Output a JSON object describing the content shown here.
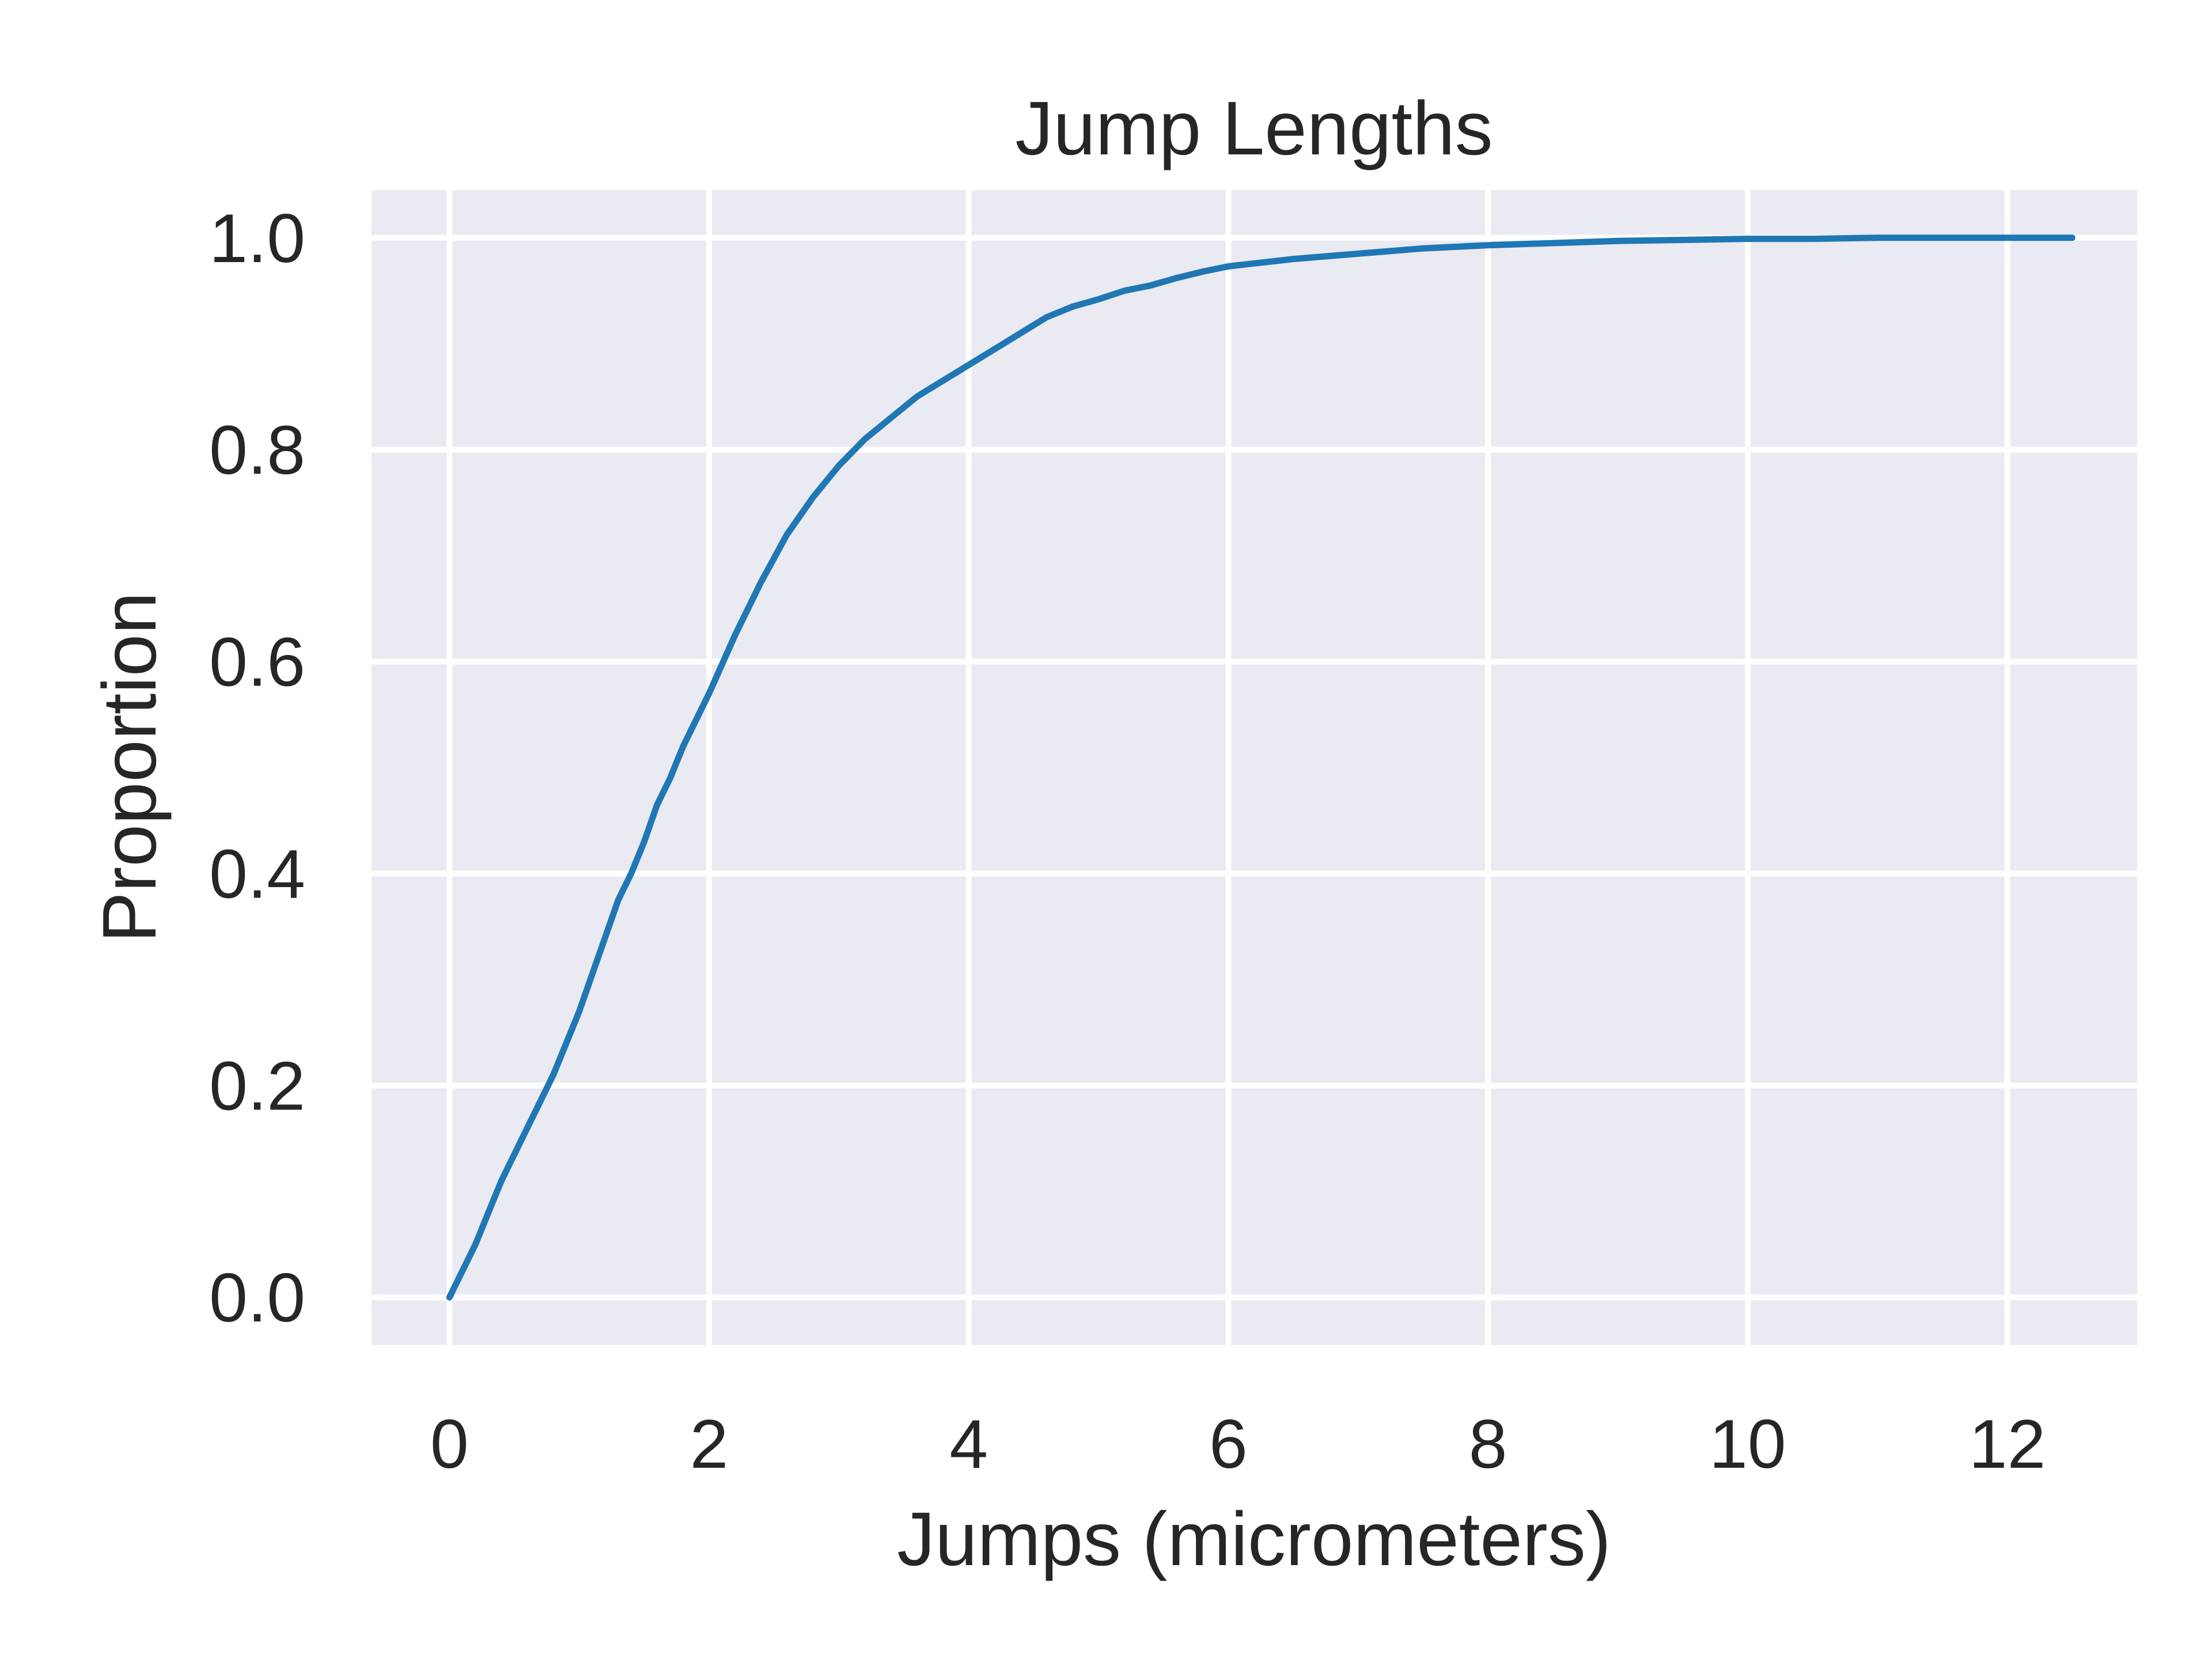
{
  "chart_data": {
    "type": "line",
    "title": "Jump Lengths",
    "xlabel": "Jumps (micrometers)",
    "ylabel": "Proportion",
    "xlim": [
      -0.6,
      13.0
    ],
    "ylim": [
      -0.045,
      1.045
    ],
    "xticks": [
      0,
      2,
      4,
      6,
      8,
      10,
      12
    ],
    "xtick_labels": [
      "0",
      "2",
      "4",
      "6",
      "8",
      "10",
      "12"
    ],
    "yticks": [
      0.0,
      0.2,
      0.4,
      0.6,
      0.8,
      1.0
    ],
    "ytick_labels": [
      "0.0",
      "0.2",
      "0.4",
      "0.6",
      "0.8",
      "1.0"
    ],
    "grid": true,
    "background_color": "#eaeaf2",
    "grid_color": "#ffffff",
    "series": [
      {
        "color": "#1f77b4",
        "x": [
          0.0,
          0.1,
          0.2,
          0.3,
          0.4,
          0.5,
          0.6,
          0.7,
          0.8,
          0.9,
          1.0,
          1.1,
          1.2,
          1.3,
          1.4,
          1.5,
          1.6,
          1.7,
          1.8,
          1.9,
          2.0,
          2.2,
          2.4,
          2.6,
          2.8,
          3.0,
          3.2,
          3.4,
          3.6,
          3.8,
          4.0,
          4.2,
          4.4,
          4.6,
          4.8,
          5.0,
          5.2,
          5.4,
          5.6,
          5.8,
          6.0,
          6.5,
          7.0,
          7.5,
          8.0,
          8.5,
          9.0,
          9.5,
          10.0,
          10.5,
          11.0,
          11.5,
          12.0,
          12.5
        ],
        "y": [
          0.0,
          0.025,
          0.05,
          0.08,
          0.11,
          0.135,
          0.16,
          0.185,
          0.21,
          0.24,
          0.27,
          0.305,
          0.34,
          0.375,
          0.4,
          0.43,
          0.465,
          0.49,
          0.52,
          0.545,
          0.57,
          0.625,
          0.675,
          0.72,
          0.755,
          0.785,
          0.81,
          0.83,
          0.85,
          0.865,
          0.88,
          0.895,
          0.91,
          0.925,
          0.935,
          0.942,
          0.95,
          0.955,
          0.962,
          0.968,
          0.973,
          0.98,
          0.985,
          0.99,
          0.993,
          0.995,
          0.997,
          0.998,
          0.999,
          0.999,
          1.0,
          1.0,
          1.0,
          1.0
        ]
      }
    ]
  }
}
